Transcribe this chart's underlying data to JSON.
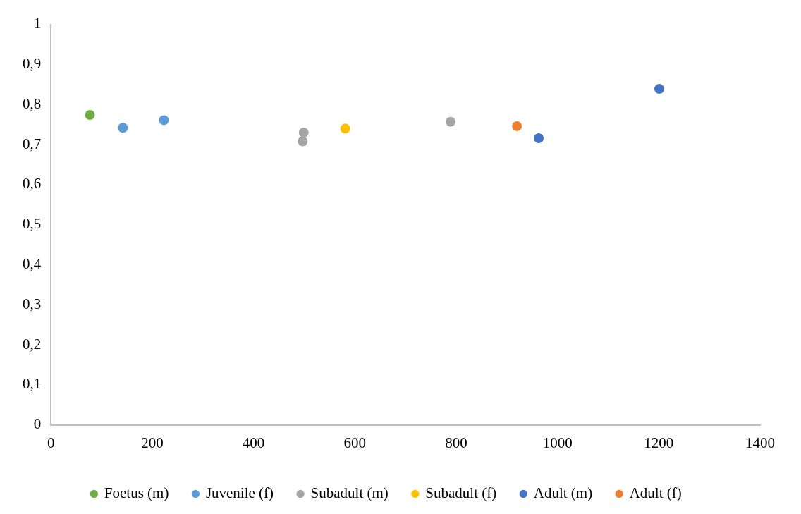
{
  "chart_data": {
    "type": "scatter",
    "marker": "circle",
    "grid": false,
    "legend": "bottom",
    "xlim": [
      0,
      1400
    ],
    "xticks": [
      0,
      200,
      400,
      600,
      800,
      1000,
      1200,
      1400
    ],
    "ylim": [
      0,
      1
    ],
    "yticks": [
      0,
      {
        "value": 0.1,
        "label": "0,1"
      },
      {
        "value": 0.2,
        "label": "0,2"
      },
      {
        "value": 0.3,
        "label": "0,3"
      },
      {
        "value": 0.4,
        "label": "0,4"
      },
      {
        "value": 0.5,
        "label": "0,5"
      },
      {
        "value": 0.6,
        "label": "0,6"
      },
      {
        "value": 0.7,
        "label": "0,7"
      },
      {
        "value": 0.8,
        "label": "0,8"
      },
      {
        "value": 0.9,
        "label": "0,9"
      },
      1
    ],
    "series": [
      {
        "name": "Foetus (m)",
        "color": "#70ad47",
        "x": [
          77
        ],
        "values": [
          0.774
        ]
      },
      {
        "name": "Juvenile (f)",
        "color": "#5b9bd5",
        "x": [
          142,
          223
        ],
        "values": [
          0.742,
          0.761
        ]
      },
      {
        "name": "Subadult (m)",
        "color": "#a5a5a5",
        "x": [
          499,
          497,
          789
        ],
        "values": [
          0.73,
          0.708,
          0.757
        ]
      },
      {
        "name": "Subadult (f)",
        "color": "#ffc000",
        "x": [
          581
        ],
        "values": [
          0.74
        ]
      },
      {
        "name": "Adult (m)",
        "color": "#4472c4",
        "x": [
          963,
          1201
        ],
        "values": [
          0.716,
          0.839
        ]
      },
      {
        "name": "Adult (f)",
        "color": "#ed7d31",
        "x": [
          920
        ],
        "values": [
          0.746
        ]
      }
    ]
  }
}
